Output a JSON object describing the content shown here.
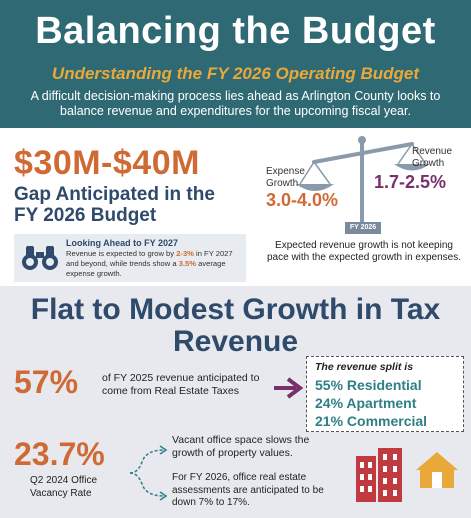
{
  "header": {
    "title": "Balancing the Budget",
    "subtitle": "Understanding the FY 2026 Operating Budget",
    "intro": "A difficult decision-making process lies ahead as Arlington County looks to balance revenue and expenditures for the upcoming fiscal year."
  },
  "gap": {
    "amount": "$30M-$40M",
    "label": "Gap Anticipated in the FY 2026 Budget",
    "lookahead": {
      "title": "Looking Ahead to FY 2027",
      "text_a": "Revenue is expected to grow by ",
      "text_b": "2-3%",
      "text_c": " in FY 2027 and beyond, while trends show a ",
      "text_d": "3.5%",
      "text_e": " average expense growth."
    },
    "scale": {
      "expense_label": "Expense Growth",
      "expense_value": "3.0-4.0%",
      "revenue_label": "Revenue Growth",
      "revenue_value": "1.7-2.5%",
      "fy_tag": "FY 2026"
    },
    "note": "Expected revenue growth is not keeping pace with the expected growth in expenses."
  },
  "revenue": {
    "heading": "Flat to Modest Growth in Tax Revenue",
    "pct": "57%",
    "pct_text": "of FY 2025 revenue anticipated to come from Real Estate Taxes",
    "split": {
      "title": "The revenue split is",
      "items": [
        "55% Residential",
        "24% Apartment",
        "21% Commercial"
      ]
    },
    "vacancy": {
      "pct": "23.7%",
      "label": "Q2 2024 Office Vacancy Rate",
      "note1": "Vacant office space slows the growth of property values.",
      "note2": "For FY 2026, office real estate assessments are anticipated to be down 7% to 17%."
    }
  },
  "colors": {
    "header_bg": "#2f6a74",
    "accent_orange": "#d06a35",
    "accent_purple": "#7a2f6b",
    "accent_teal": "#2f7f86",
    "navy": "#2f4a6a"
  }
}
